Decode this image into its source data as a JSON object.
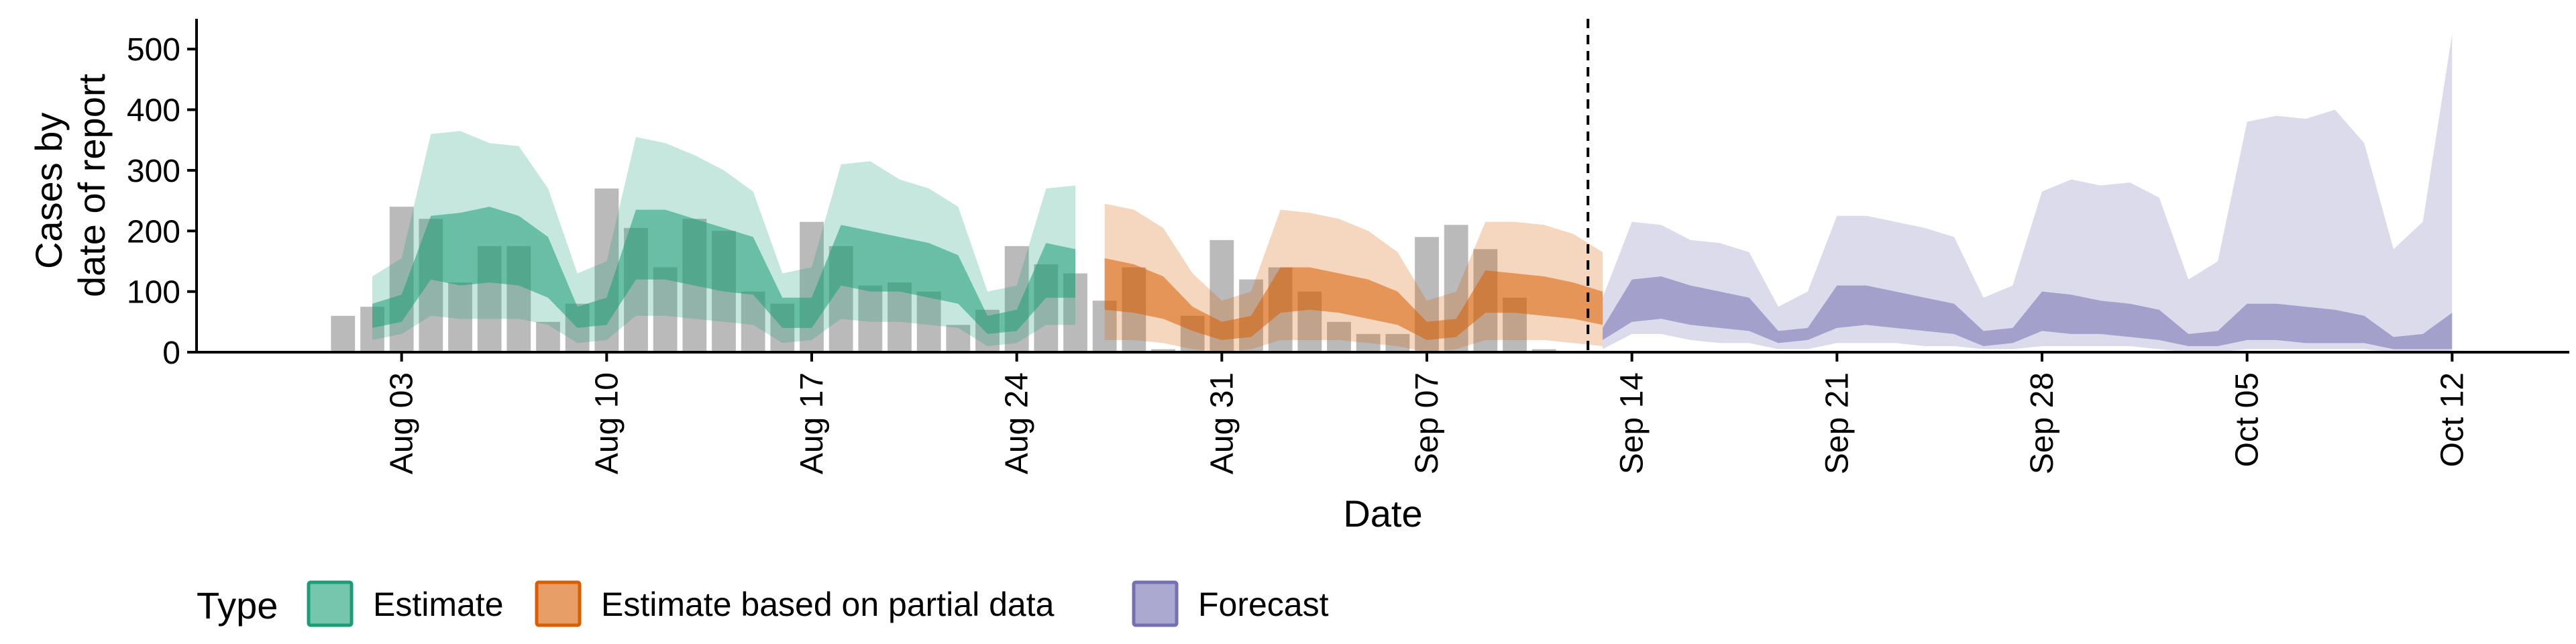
{
  "chart_data": {
    "type": "area",
    "xlabel": "Date",
    "ylabel_lines": [
      "Cases by",
      "date of report"
    ],
    "ylim": [
      0,
      550
    ],
    "yticks": [
      0,
      100,
      200,
      300,
      400,
      500
    ],
    "xlim": [
      "2020-07-27",
      "2020-10-16"
    ],
    "xticks": [
      {
        "date": "2020-08-03",
        "label": "Aug 03"
      },
      {
        "date": "2020-08-10",
        "label": "Aug 10"
      },
      {
        "date": "2020-08-17",
        "label": "Aug 17"
      },
      {
        "date": "2020-08-24",
        "label": "Aug 24"
      },
      {
        "date": "2020-08-31",
        "label": "Aug 31"
      },
      {
        "date": "2020-09-07",
        "label": "Sep 07"
      },
      {
        "date": "2020-09-14",
        "label": "Sep 14"
      },
      {
        "date": "2020-09-21",
        "label": "Sep 21"
      },
      {
        "date": "2020-09-28",
        "label": "Sep 28"
      },
      {
        "date": "2020-10-05",
        "label": "Oct 05"
      },
      {
        "date": "2020-10-12",
        "label": "Oct 12"
      }
    ],
    "forecast_start": "2020-09-13",
    "legend": {
      "title": "Type",
      "position": "bottom-left",
      "items": [
        {
          "name": "Estimate",
          "color": "#1b9e77"
        },
        {
          "name": "Estimate based on partial data",
          "color": "#d95f02"
        },
        {
          "name": "Forecast",
          "color": "#7570b3"
        }
      ]
    },
    "observed_cases": {
      "color": "#a9a9a9",
      "start": "2020-08-01",
      "values": [
        60,
        75,
        240,
        220,
        115,
        175,
        175,
        50,
        80,
        270,
        205,
        140,
        220,
        200,
        100,
        80,
        215,
        175,
        110,
        115,
        100,
        45,
        70,
        175,
        145,
        130,
        85,
        140,
        5,
        60,
        185,
        120,
        140,
        100,
        50,
        30,
        30,
        190,
        210,
        170,
        90,
        5
      ]
    },
    "series": [
      {
        "name": "Estimate",
        "start": "2020-08-02",
        "color": "#1b9e77",
        "upper90": [
          125,
          155,
          360,
          365,
          345,
          340,
          270,
          130,
          150,
          355,
          345,
          325,
          300,
          265,
          130,
          140,
          310,
          315,
          285,
          270,
          240,
          100,
          110,
          270,
          275
        ],
        "upper50": [
          80,
          95,
          225,
          230,
          240,
          225,
          190,
          75,
          90,
          235,
          235,
          220,
          205,
          190,
          90,
          90,
          210,
          200,
          190,
          180,
          160,
          60,
          70,
          180,
          170
        ],
        "lower50": [
          40,
          50,
          120,
          110,
          115,
          110,
          90,
          40,
          45,
          120,
          120,
          110,
          100,
          95,
          40,
          40,
          110,
          100,
          100,
          90,
          80,
          30,
          35,
          90,
          90
        ],
        "lower90": [
          20,
          30,
          60,
          55,
          55,
          55,
          45,
          15,
          20,
          60,
          60,
          55,
          50,
          45,
          15,
          20,
          55,
          50,
          50,
          45,
          40,
          10,
          15,
          45,
          45
        ]
      },
      {
        "name": "Estimate based on partial data",
        "start": "2020-08-27",
        "color": "#d95f02",
        "upper90": [
          245,
          235,
          205,
          130,
          85,
          100,
          235,
          230,
          220,
          200,
          165,
          85,
          100,
          215,
          215,
          210,
          195,
          165
        ],
        "upper50": [
          155,
          145,
          125,
          75,
          50,
          60,
          140,
          140,
          130,
          120,
          100,
          50,
          55,
          135,
          130,
          125,
          115,
          100
        ],
        "lower50": [
          70,
          65,
          55,
          35,
          20,
          25,
          65,
          70,
          65,
          55,
          45,
          20,
          25,
          65,
          65,
          60,
          55,
          45
        ],
        "lower90": [
          20,
          20,
          15,
          5,
          0,
          5,
          20,
          20,
          20,
          15,
          10,
          0,
          5,
          20,
          20,
          20,
          15,
          10
        ]
      },
      {
        "name": "Forecast",
        "start": "2020-09-13",
        "color": "#7570b3",
        "upper90": [
          90,
          215,
          210,
          185,
          180,
          165,
          75,
          100,
          225,
          225,
          215,
          205,
          190,
          90,
          110,
          265,
          285,
          275,
          280,
          255,
          120,
          150,
          380,
          390,
          385,
          400,
          345,
          170,
          215,
          525
        ],
        "upper50": [
          40,
          120,
          125,
          110,
          100,
          90,
          35,
          40,
          110,
          110,
          100,
          90,
          80,
          35,
          40,
          100,
          95,
          85,
          80,
          70,
          30,
          35,
          80,
          80,
          75,
          70,
          60,
          25,
          30,
          65
        ],
        "lower50": [
          20,
          50,
          55,
          45,
          40,
          35,
          15,
          20,
          40,
          45,
          40,
          35,
          30,
          10,
          15,
          35,
          30,
          30,
          25,
          20,
          10,
          10,
          20,
          20,
          15,
          15,
          15,
          5,
          5,
          5
        ],
        "lower90": [
          5,
          30,
          30,
          20,
          15,
          15,
          5,
          5,
          15,
          15,
          15,
          10,
          10,
          5,
          5,
          10,
          10,
          10,
          10,
          5,
          0,
          0,
          5,
          5,
          5,
          5,
          5,
          0,
          0,
          0
        ]
      }
    ]
  }
}
